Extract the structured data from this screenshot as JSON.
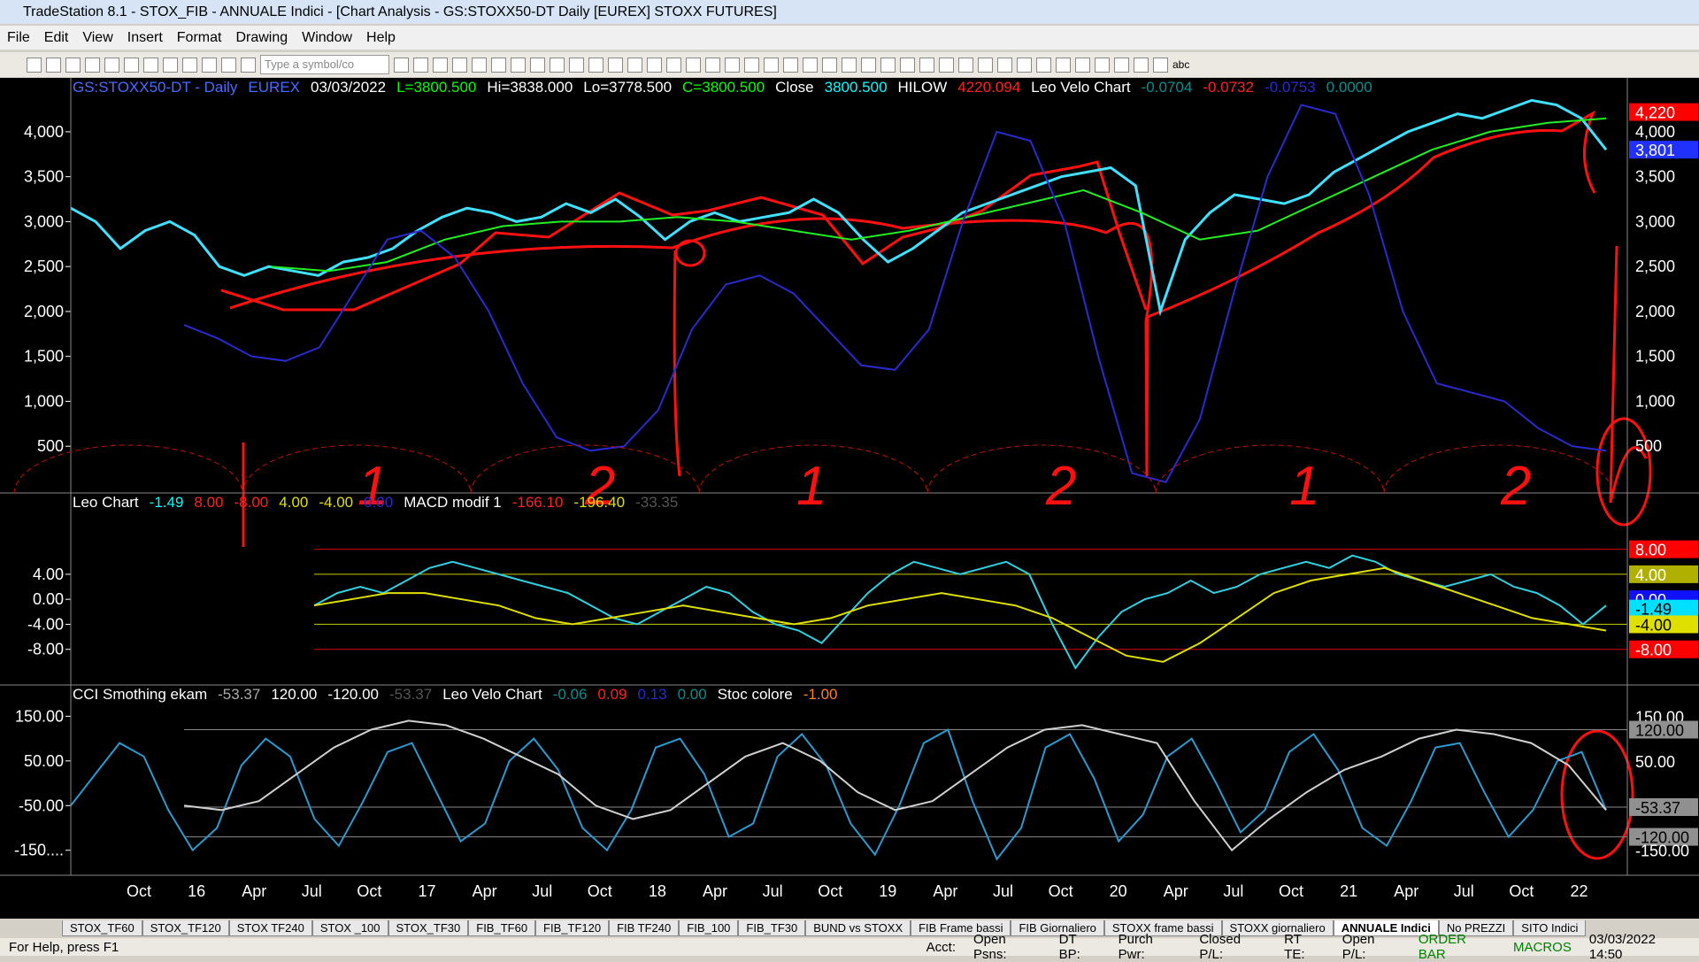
{
  "window": {
    "title": "TradeStation 8.1 - STOX_FIB - ANNUALE Indici - [Chart Analysis - GS:STOXX50-DT  Daily  [EUREX] STOXX FUTURES]"
  },
  "menu": [
    "File",
    "Edit",
    "View",
    "Insert",
    "Format",
    "Drawing",
    "Window",
    "Help"
  ],
  "toolbar": {
    "symbol_box": "Type a symbol/co",
    "text_tool": "abc"
  },
  "chart_data": [
    {
      "type": "line",
      "header": [
        {
          "text": "GS:STOXX50-DT - Daily",
          "color": "#4a6bff"
        },
        {
          "text": "EUREX",
          "color": "#4a6bff"
        },
        {
          "text": "03/03/2022",
          "color": "#ffffff"
        },
        {
          "text": "L=3800.500",
          "color": "#00ff00"
        },
        {
          "text": "Hi=3838.000",
          "color": "#ffffff"
        },
        {
          "text": "Lo=3778.500",
          "color": "#ffffff"
        },
        {
          "text": "C=3800.500",
          "color": "#00ff00"
        },
        {
          "text": "Close",
          "color": "#ffffff"
        },
        {
          "text": "3800.500",
          "color": "#00ffff"
        },
        {
          "text": "HILOW",
          "color": "#ffffff"
        },
        {
          "text": "4220.094",
          "color": "#ff2020"
        },
        {
          "text": "Leo Velo Chart",
          "color": "#ffffff"
        },
        {
          "text": "-0.0704",
          "color": "#009090"
        },
        {
          "text": "-0.0732",
          "color": "#ff2020"
        },
        {
          "text": "-0.0753",
          "color": "#2a2ad0"
        },
        {
          "text": "0.0000",
          "color": "#009090"
        }
      ],
      "ylim": [
        -20,
        4600
      ],
      "yticks": [
        {
          "value": 500,
          "label": "500"
        },
        {
          "value": 1000,
          "label": "1,000"
        },
        {
          "value": 1500,
          "label": "1,500"
        },
        {
          "value": 2000,
          "label": "2,000"
        },
        {
          "value": 2500,
          "label": "2,500"
        },
        {
          "value": 3000,
          "label": "3,000"
        },
        {
          "value": 3500,
          "label": "3,500"
        },
        {
          "value": 4000,
          "label": "4,000"
        }
      ],
      "series": [
        {
          "color": "#40e0ff",
          "values": [
            3150,
            3000,
            2700,
            2900,
            3000,
            2850,
            2500,
            2400,
            2500,
            2450,
            2400,
            2550,
            2600,
            2700,
            2900,
            3050,
            3150,
            3100,
            3000,
            3050,
            3200,
            3100,
            3250,
            3050,
            2800,
            3000,
            3100,
            3000,
            3050,
            3100,
            3250,
            3100,
            2800,
            2550,
            2700,
            2900,
            3100,
            3200,
            3300,
            3400,
            3500,
            3550,
            3600,
            3400,
            2000,
            2800,
            3100,
            3300,
            3250,
            3200,
            3300,
            3550,
            3700,
            3850,
            4000,
            4100,
            4200,
            4150,
            4250,
            4350,
            4300,
            4150,
            3800
          ]
        },
        {
          "color": "#22ee22",
          "values": [
            2500,
            2450,
            2550,
            2800,
            2950,
            3000,
            3000,
            3050,
            3000,
            2900,
            2800,
            2900,
            3050,
            3200,
            3350,
            3100,
            2800,
            2900,
            3200,
            3500,
            3800,
            4000,
            4100,
            4150
          ]
        },
        {
          "color": "#2a2ad0",
          "values": [
            1850,
            1700,
            1500,
            1450,
            1600,
            2200,
            2800,
            2900,
            2600,
            2000,
            1200,
            600,
            450,
            500,
            900,
            1800,
            2300,
            2400,
            2200,
            1800,
            1400,
            1350,
            1800,
            3000,
            4000,
            3900,
            3000,
            1500,
            200,
            100,
            800,
            2200,
            3500,
            4300,
            4200,
            3300,
            2000,
            1200,
            1100,
            1000,
            700,
            500,
            450
          ]
        }
      ],
      "right_labels": [
        {
          "value": 4220,
          "label": "4,220",
          "color": "#ff0000",
          "text_color": "#ffffff"
        },
        {
          "value": 3801,
          "label": "3,801",
          "color": "#2030ff",
          "text_color": "#ffffff"
        }
      ]
    },
    {
      "type": "line",
      "header": [
        {
          "text": "Leo Chart",
          "color": "#ffffff"
        },
        {
          "text": "-1.49",
          "color": "#00ffff"
        },
        {
          "text": "8.00",
          "color": "#ff2020"
        },
        {
          "text": "-8.00",
          "color": "#ff2020"
        },
        {
          "text": "4.00",
          "color": "#e0e000"
        },
        {
          "text": "-4.00",
          "color": "#e0e000"
        },
        {
          "text": "0.00",
          "color": "#2a2ad0"
        },
        {
          "text": "MACD modif 1",
          "color": "#ffffff"
        },
        {
          "text": "-166.10",
          "color": "#ff2020"
        },
        {
          "text": "-196.40",
          "color": "#e0e000"
        },
        {
          "text": "-33.35",
          "color": "#555555"
        }
      ],
      "ylim": [
        -13.7,
        17
      ],
      "yticks": [
        {
          "value": 4,
          "label": "4.00"
        },
        {
          "value": 0,
          "label": "0.00"
        },
        {
          "value": -4,
          "label": "-4.00"
        },
        {
          "value": -8,
          "label": "-8.00"
        }
      ],
      "series": [
        {
          "color": "#30d0e0",
          "values": [
            -1,
            1,
            2,
            1,
            3,
            5,
            6,
            5,
            4,
            3,
            2,
            1,
            -1,
            -3,
            -4,
            -2,
            0,
            2,
            1,
            -2,
            -4,
            -5,
            -7,
            -3,
            1,
            4,
            6,
            5,
            4,
            5,
            6,
            4,
            -4,
            -11,
            -6,
            -2,
            0,
            1,
            3,
            1,
            2,
            4,
            5,
            6,
            5,
            7,
            6,
            4,
            3,
            2,
            3,
            4,
            2,
            1,
            -1,
            -4,
            -1
          ]
        },
        {
          "color": "#e0e000",
          "values": [
            -1,
            0,
            1,
            1,
            0,
            -1,
            -3,
            -4,
            -3,
            -2,
            -1,
            -2,
            -3,
            -4,
            -3,
            -1,
            0,
            1,
            0,
            -1,
            -3,
            -6,
            -9,
            -10,
            -7,
            -3,
            1,
            3,
            4,
            5,
            3,
            1,
            -1,
            -3,
            -4,
            -5
          ]
        }
      ],
      "right_labels": [
        {
          "value": 8,
          "label": "8.00",
          "color": "#ff0000",
          "text_color": "#ffffff"
        },
        {
          "value": 4,
          "label": "4.00",
          "color": "#b0b000",
          "text_color": "#ffffff"
        },
        {
          "value": 0,
          "label": "0.00",
          "color": "#1010ff",
          "text_color": "#ffffff"
        },
        {
          "value": -1.49,
          "label": "-1.49",
          "color": "#00e0ff",
          "text_color": "#000000"
        },
        {
          "value": -4,
          "label": "-4.00",
          "color": "#e0e000",
          "text_color": "#000000"
        },
        {
          "value": -8,
          "label": "-8.00",
          "color": "#ff0000",
          "text_color": "#ffffff"
        }
      ]
    },
    {
      "type": "line",
      "header": [
        {
          "text": "CCI Smothing ekam",
          "color": "#ffffff"
        },
        {
          "text": "-53.37",
          "color": "#aaaaaa"
        },
        {
          "text": "120.00",
          "color": "#ffffff"
        },
        {
          "text": "-120.00",
          "color": "#ffffff"
        },
        {
          "text": "-53.37",
          "color": "#555555"
        },
        {
          "text": "Leo Velo Chart",
          "color": "#ffffff"
        },
        {
          "text": "-0.06",
          "color": "#009090"
        },
        {
          "text": "0.09",
          "color": "#ff2020"
        },
        {
          "text": "0.13",
          "color": "#2a2ad0"
        },
        {
          "text": "0.00",
          "color": "#009090"
        },
        {
          "text": "Stoc colore",
          "color": "#ffffff"
        },
        {
          "text": "-1.00",
          "color": "#ff8020"
        }
      ],
      "ylim": [
        -206,
        220
      ],
      "yticks": [
        {
          "value": 150,
          "label": "150.00"
        },
        {
          "value": 50,
          "label": "50.00"
        },
        {
          "value": -50,
          "label": "-50.00"
        },
        {
          "value": -150,
          "label": "-150...."
        }
      ],
      "series": [
        {
          "color": "#2a9ad0",
          "values": [
            -50,
            20,
            90,
            60,
            -60,
            -150,
            -100,
            40,
            100,
            60,
            -80,
            -140,
            -40,
            70,
            90,
            -20,
            -130,
            -90,
            50,
            100,
            30,
            -100,
            -150,
            -60,
            80,
            100,
            20,
            -120,
            -90,
            60,
            110,
            40,
            -90,
            -160,
            -50,
            90,
            120,
            -40,
            -170,
            -100,
            80,
            110,
            10,
            -130,
            -70,
            60,
            100,
            0,
            -110,
            -60,
            70,
            110,
            30,
            -100,
            -140,
            -40,
            80,
            90,
            -20,
            -120,
            -60,
            50,
            70,
            -60
          ]
        },
        {
          "color": "#d0d0d0",
          "values": [
            -50,
            -60,
            -40,
            20,
            80,
            120,
            140,
            130,
            100,
            60,
            20,
            -50,
            -80,
            -60,
            0,
            60,
            90,
            50,
            -20,
            -60,
            -40,
            20,
            80,
            120,
            130,
            110,
            90,
            -40,
            -150,
            -80,
            -20,
            30,
            60,
            100,
            120,
            110,
            90,
            40,
            -60
          ]
        }
      ],
      "right_labels": [
        {
          "value": 150,
          "label": "150.00",
          "color": "none",
          "text_color": "#ffffff"
        },
        {
          "value": 120,
          "label": "120.00",
          "color": "#909090",
          "text_color": "#000000"
        },
        {
          "value": 50,
          "label": "50.00",
          "color": "none",
          "text_color": "#ffffff"
        },
        {
          "value": -53.37,
          "label": "-53.37",
          "color": "#909090",
          "text_color": "#000000"
        },
        {
          "value": -120,
          "label": "-120.00",
          "color": "#909090",
          "text_color": "#000000"
        },
        {
          "value": -150,
          "label": "-150.00",
          "color": "none",
          "text_color": "#ffffff"
        }
      ]
    }
  ],
  "x_axis": {
    "labels": [
      "Oct",
      "16",
      "Apr",
      "Jul",
      "Oct",
      "17",
      "Apr",
      "Jul",
      "Oct",
      "18",
      "Apr",
      "Jul",
      "Oct",
      "19",
      "Apr",
      "Jul",
      "Oct",
      "20",
      "Apr",
      "Jul",
      "Oct",
      "21",
      "Apr",
      "Jul",
      "Oct",
      "22"
    ]
  },
  "annotations": [
    "1",
    "2",
    "1",
    "2",
    "1",
    "2"
  ],
  "tabs": [
    "STOX_TF60",
    "STOX_TF120",
    "STOX TF240",
    "STOX _100",
    "STOX_TF30",
    "FIB_TF60",
    "FIB_TF120",
    "FIB TF240",
    "FIB_100",
    "FIB_TF30",
    "BUND vs STOXX",
    "FIB Frame bassi",
    "FIB Giornaliero",
    "STOXX frame bassi",
    "STOXX giornaliero",
    "ANNUALE Indici",
    "No PREZZI",
    "SITO Indici"
  ],
  "active_tab": "ANNUALE Indici",
  "status": {
    "help": "For Help, press F1",
    "fields": [
      "Acct:",
      "Open Psns:",
      "DT BP:",
      "Purch Pwr:",
      "Closed P/L:",
      "RT TE:",
      "Open P/L:"
    ],
    "order_bar": "ORDER BAR",
    "macros": "MACROS",
    "clock": "03/03/2022 14:50"
  }
}
